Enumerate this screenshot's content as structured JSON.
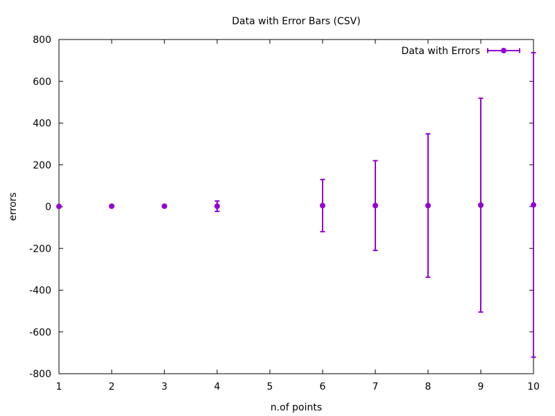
{
  "chart_data": {
    "type": "scatter",
    "title": "Data with Error Bars (CSV)",
    "xlabel": "n.of points",
    "ylabel": "errors",
    "xlim": [
      1,
      10
    ],
    "ylim": [
      -800,
      800
    ],
    "xticks": [
      1,
      2,
      3,
      4,
      5,
      6,
      7,
      8,
      9,
      10
    ],
    "yticks": [
      -800,
      -600,
      -400,
      -200,
      0,
      200,
      400,
      600,
      800
    ],
    "grid": false,
    "legend_position": "top-right",
    "series": [
      {
        "name": "Data with Errors",
        "color": "#9400d3",
        "marker": "circle",
        "points": [
          {
            "x": 1,
            "y": 1,
            "err": 0
          },
          {
            "x": 2,
            "y": 2,
            "err": 0
          },
          {
            "x": 3,
            "y": 2,
            "err": 5
          },
          {
            "x": 4,
            "y": 2,
            "err": 25
          },
          {
            "x": 6,
            "y": 5,
            "err": 125
          },
          {
            "x": 7,
            "y": 5,
            "err": 215
          },
          {
            "x": 8,
            "y": 5,
            "err": 343
          },
          {
            "x": 9,
            "y": 7,
            "err": 512
          },
          {
            "x": 10,
            "y": 8,
            "err": 729
          }
        ]
      }
    ]
  }
}
